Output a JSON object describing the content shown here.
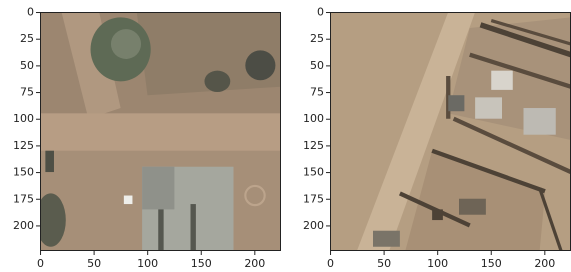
{
  "chart_data": [
    {
      "type": "image",
      "xlim": [
        -0.5,
        223.5
      ],
      "ylim": [
        223.5,
        -0.5
      ],
      "xticks": [
        0,
        50,
        100,
        150,
        200
      ],
      "yticks": [
        0,
        25,
        50,
        75,
        100,
        125,
        150,
        175,
        200
      ]
    },
    {
      "type": "image",
      "xlim": [
        -0.5,
        223.5
      ],
      "ylim": [
        223.5,
        -0.5
      ],
      "xticks": [
        0,
        50,
        100,
        150,
        200
      ],
      "yticks": [
        0,
        25,
        50,
        75,
        100,
        125,
        150,
        175,
        200
      ]
    }
  ]
}
